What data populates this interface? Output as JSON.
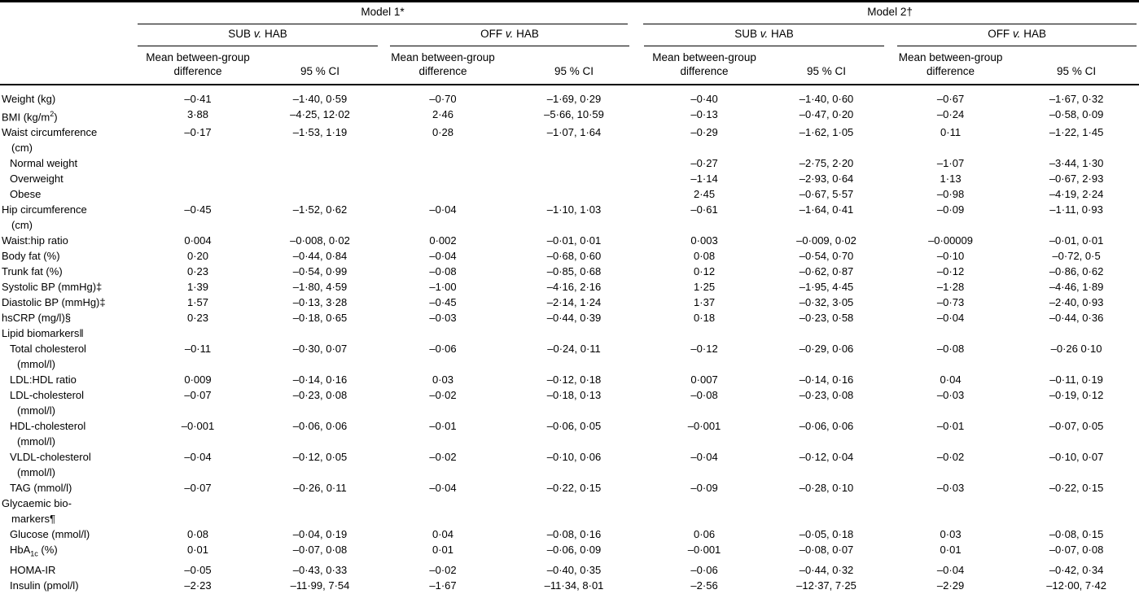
{
  "table": {
    "models": [
      {
        "label": "Model 1*"
      },
      {
        "label": "Model 2†"
      }
    ],
    "comparison_groups": [
      {
        "label": "SUB *v.* HAB"
      },
      {
        "label": "OFF *v.* HAB"
      },
      {
        "label": "SUB *v.* HAB"
      },
      {
        "label": "OFF *v.* HAB"
      }
    ],
    "col_headers": {
      "mean": "Mean between-group difference",
      "ci": "95 % CI"
    },
    "rows": [
      {
        "label_lines": [
          "Weight (kg)"
        ],
        "indent": 0,
        "cells": [
          "–0·41",
          "–1·40, 0·59",
          "–0·70",
          "–1·69, 0·29",
          "–0·40",
          "–1·40, 0·60",
          "–0·67",
          "–1·67, 0·32"
        ]
      },
      {
        "label_lines": [
          "BMI (kg/m^2^)"
        ],
        "indent": 0,
        "cells": [
          "3·88",
          "–4·25, 12·02",
          "2·46",
          "–5·66, 10·59",
          "–0·13",
          "–0·47, 0·20",
          "–0·24",
          "–0·58, 0·09"
        ]
      },
      {
        "label_lines": [
          "Waist circumference",
          "(cm)"
        ],
        "indent": 0,
        "cells": [
          "–0·17",
          "–1·53, 1·19",
          "0·28",
          "–1·07, 1·64",
          "–0·29",
          "–1·62, 1·05",
          "0·11",
          "–1·22, 1·45"
        ]
      },
      {
        "label_lines": [
          "Normal weight"
        ],
        "indent": 1,
        "cells": [
          "",
          "",
          "",
          "",
          "–0·27",
          "–2·75, 2·20",
          "–1·07",
          "–3·44, 1·30"
        ]
      },
      {
        "label_lines": [
          "Overweight"
        ],
        "indent": 1,
        "cells": [
          "",
          "",
          "",
          "",
          "–1·14",
          "–2·93, 0·64",
          "1·13",
          "–0·67, 2·93"
        ]
      },
      {
        "label_lines": [
          "Obese"
        ],
        "indent": 1,
        "cells": [
          "",
          "",
          "",
          "",
          "2·45",
          "–0·67, 5·57",
          "–0·98",
          "–4·19, 2·24"
        ]
      },
      {
        "label_lines": [
          "Hip circumference",
          "(cm)"
        ],
        "indent": 0,
        "cells": [
          "–0·45",
          "–1·52, 0·62",
          "–0·04",
          "–1·10, 1·03",
          "–0·61",
          "–1·64, 0·41",
          "–0·09",
          "–1·11, 0·93"
        ]
      },
      {
        "label_lines": [
          "Waist:hip ratio"
        ],
        "indent": 0,
        "cells": [
          "0·004",
          "–0·008, 0·02",
          "0·002",
          "–0·01, 0·01",
          "0·003",
          "–0·009, 0·02",
          "–0·00009",
          "–0·01, 0·01"
        ]
      },
      {
        "label_lines": [
          "Body fat (%)"
        ],
        "indent": 0,
        "cells": [
          "0·20",
          "–0·44, 0·84",
          "–0·04",
          "–0·68, 0·60",
          "0·08",
          "–0·54, 0·70",
          "–0·10",
          "–0·72, 0·5"
        ]
      },
      {
        "label_lines": [
          "Trunk fat (%)"
        ],
        "indent": 0,
        "cells": [
          "0·23",
          "–0·54, 0·99",
          "–0·08",
          "–0·85, 0·68",
          "0·12",
          "–0·62, 0·87",
          "–0·12",
          "–0·86, 0·62"
        ]
      },
      {
        "label_lines": [
          "Systolic BP (mmHg)‡"
        ],
        "indent": 0,
        "cells": [
          "1·39",
          "–1·80, 4·59",
          "–1·00",
          "–4·16, 2·16",
          "1·25",
          "–1·95, 4·45",
          "–1·28",
          "–4·46, 1·89"
        ]
      },
      {
        "label_lines": [
          "Diastolic BP (mmHg)‡"
        ],
        "indent": 0,
        "cells": [
          "1·57",
          "–0·13, 3·28",
          "–0·45",
          "–2·14, 1·24",
          "1·37",
          "–0·32, 3·05",
          "–0·73",
          "–2·40, 0·93"
        ]
      },
      {
        "label_lines": [
          "hsCRP (mg/l)§"
        ],
        "indent": 0,
        "cells": [
          "0·23",
          "–0·18, 0·65",
          "–0·03",
          "–0·44, 0·39",
          "0·18",
          "–0·23, 0·58",
          "–0·04",
          "–0·44, 0·36"
        ]
      },
      {
        "label_lines": [
          "Lipid biomarkers‖"
        ],
        "indent": 0,
        "section": true,
        "cells": [
          "",
          "",
          "",
          "",
          "",
          "",
          "",
          ""
        ]
      },
      {
        "label_lines": [
          "Total cholesterol",
          "(mmol/l)"
        ],
        "indent": 1,
        "cells": [
          "–0·11",
          "–0·30, 0·07",
          "–0·06",
          "–0·24, 0·11",
          "–0·12",
          "–0·29, 0·06",
          "–0·08",
          "–0·26 0·10"
        ]
      },
      {
        "label_lines": [
          "LDL:HDL ratio"
        ],
        "indent": 1,
        "cells": [
          "0·009",
          "–0·14, 0·16",
          "0·03",
          "–0·12, 0·18",
          "0·007",
          "–0·14, 0·16",
          "0·04",
          "–0·11, 0·19"
        ]
      },
      {
        "label_lines": [
          "LDL-cholesterol",
          "(mmol/l)"
        ],
        "indent": 1,
        "cells": [
          "–0·07",
          "–0·23, 0·08",
          "–0·02",
          "–0·18, 0·13",
          "–0·08",
          "–0·23, 0·08",
          "–0·03",
          "–0·19, 0·12"
        ]
      },
      {
        "label_lines": [
          "HDL-cholesterol",
          "(mmol/l)"
        ],
        "indent": 1,
        "cells": [
          "–0·001",
          "–0·06, 0·06",
          "–0·01",
          "–0·06, 0·05",
          "–0·001",
          "–0·06, 0·06",
          "–0·01",
          "–0·07, 0·05"
        ]
      },
      {
        "label_lines": [
          "VLDL-cholesterol",
          "(mmol/l)"
        ],
        "indent": 1,
        "cells": [
          "–0·04",
          "–0·12, 0·05",
          "–0·02",
          "–0·10, 0·06",
          "–0·04",
          "–0·12, 0·04",
          "–0·02",
          "–0·10, 0·07"
        ]
      },
      {
        "label_lines": [
          "TAG (mmol/l)"
        ],
        "indent": 1,
        "cells": [
          "–0·07",
          "–0·26, 0·11",
          "–0·04",
          "–0·22, 0·15",
          "–0·09",
          "–0·28, 0·10",
          "–0·03",
          "–0·22, 0·15"
        ]
      },
      {
        "label_lines": [
          "Glycaemic bio-",
          "markers¶"
        ],
        "indent": 0,
        "section": true,
        "cells": [
          "",
          "",
          "",
          "",
          "",
          "",
          "",
          ""
        ]
      },
      {
        "label_lines": [
          "Glucose (mmol/l)"
        ],
        "indent": 1,
        "cells": [
          "0·08",
          "–0·04, 0·19",
          "0·04",
          "–0·08, 0·16",
          "0·06",
          "–0·05, 0·18",
          "0·03",
          "–0·08, 0·15"
        ]
      },
      {
        "label_lines": [
          "HbA~1c~ (%)"
        ],
        "indent": 1,
        "cells": [
          "0·01",
          "–0·07, 0·08",
          "0·01",
          "–0·06, 0·09",
          "–0·001",
          "–0·08, 0·07",
          "0·01",
          "–0·07, 0·08"
        ]
      },
      {
        "label_lines": [
          "HOMA-IR"
        ],
        "indent": 1,
        "cells": [
          "–0·05",
          "–0·43, 0·33",
          "–0·02",
          "–0·40, 0·35",
          "–0·06",
          "–0·44, 0·32",
          "–0·04",
          "–0·42, 0·34"
        ]
      },
      {
        "label_lines": [
          "Insulin (pmol/l)"
        ],
        "indent": 1,
        "cells": [
          "–2·23",
          "–11·99, 7·54",
          "–1·67",
          "–11·34, 8·01",
          "–2·56",
          "–12·37, 7·25",
          "–2·29",
          "–12·00, 7·42"
        ]
      }
    ]
  }
}
